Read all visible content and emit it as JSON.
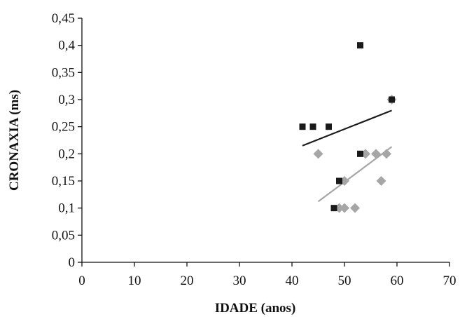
{
  "chart_data": {
    "type": "scatter",
    "xlabel": "IDADE (anos)",
    "ylabel": "CRONAXIA (ms)",
    "xlim": [
      0,
      70
    ],
    "ylim": [
      0,
      0.45
    ],
    "x_ticks": [
      0,
      10,
      20,
      30,
      40,
      50,
      60,
      70
    ],
    "x_tick_labels": [
      "0",
      "10",
      "20",
      "30",
      "40",
      "50",
      "60",
      "70"
    ],
    "y_ticks": [
      0,
      0.05,
      0.1,
      0.15,
      0.2,
      0.25,
      0.3,
      0.35,
      0.4,
      0.45
    ],
    "y_tick_labels": [
      "0",
      "0,05",
      "0,1",
      "0,15",
      "0,2",
      "0,25",
      "0,3",
      "0,35",
      "0,4",
      "0,45"
    ],
    "grid": false,
    "legend": "none",
    "series": [
      {
        "marker": "square",
        "color": "#1a1a1a",
        "points": [
          {
            "x": 42,
            "y": 0.25
          },
          {
            "x": 44,
            "y": 0.25
          },
          {
            "x": 47,
            "y": 0.25
          },
          {
            "x": 48,
            "y": 0.1
          },
          {
            "x": 49,
            "y": 0.15
          },
          {
            "x": 53,
            "y": 0.4
          },
          {
            "x": 53,
            "y": 0.2
          },
          {
            "x": 59,
            "y": 0.3
          }
        ],
        "trendline": {
          "x": [
            42,
            59
          ],
          "y": [
            0.215,
            0.28
          ]
        }
      },
      {
        "marker": "diamond",
        "color": "#a6a6a6",
        "points": [
          {
            "x": 45,
            "y": 0.2
          },
          {
            "x": 49,
            "y": 0.1
          },
          {
            "x": 50,
            "y": 0.1
          },
          {
            "x": 50,
            "y": 0.15
          },
          {
            "x": 52,
            "y": 0.1
          },
          {
            "x": 54,
            "y": 0.2
          },
          {
            "x": 56,
            "y": 0.2
          },
          {
            "x": 57,
            "y": 0.15
          },
          {
            "x": 58,
            "y": 0.2
          },
          {
            "x": 59,
            "y": 0.3
          }
        ],
        "trendline": {
          "x": [
            45,
            59
          ],
          "y": [
            0.112,
            0.213
          ]
        }
      }
    ]
  }
}
